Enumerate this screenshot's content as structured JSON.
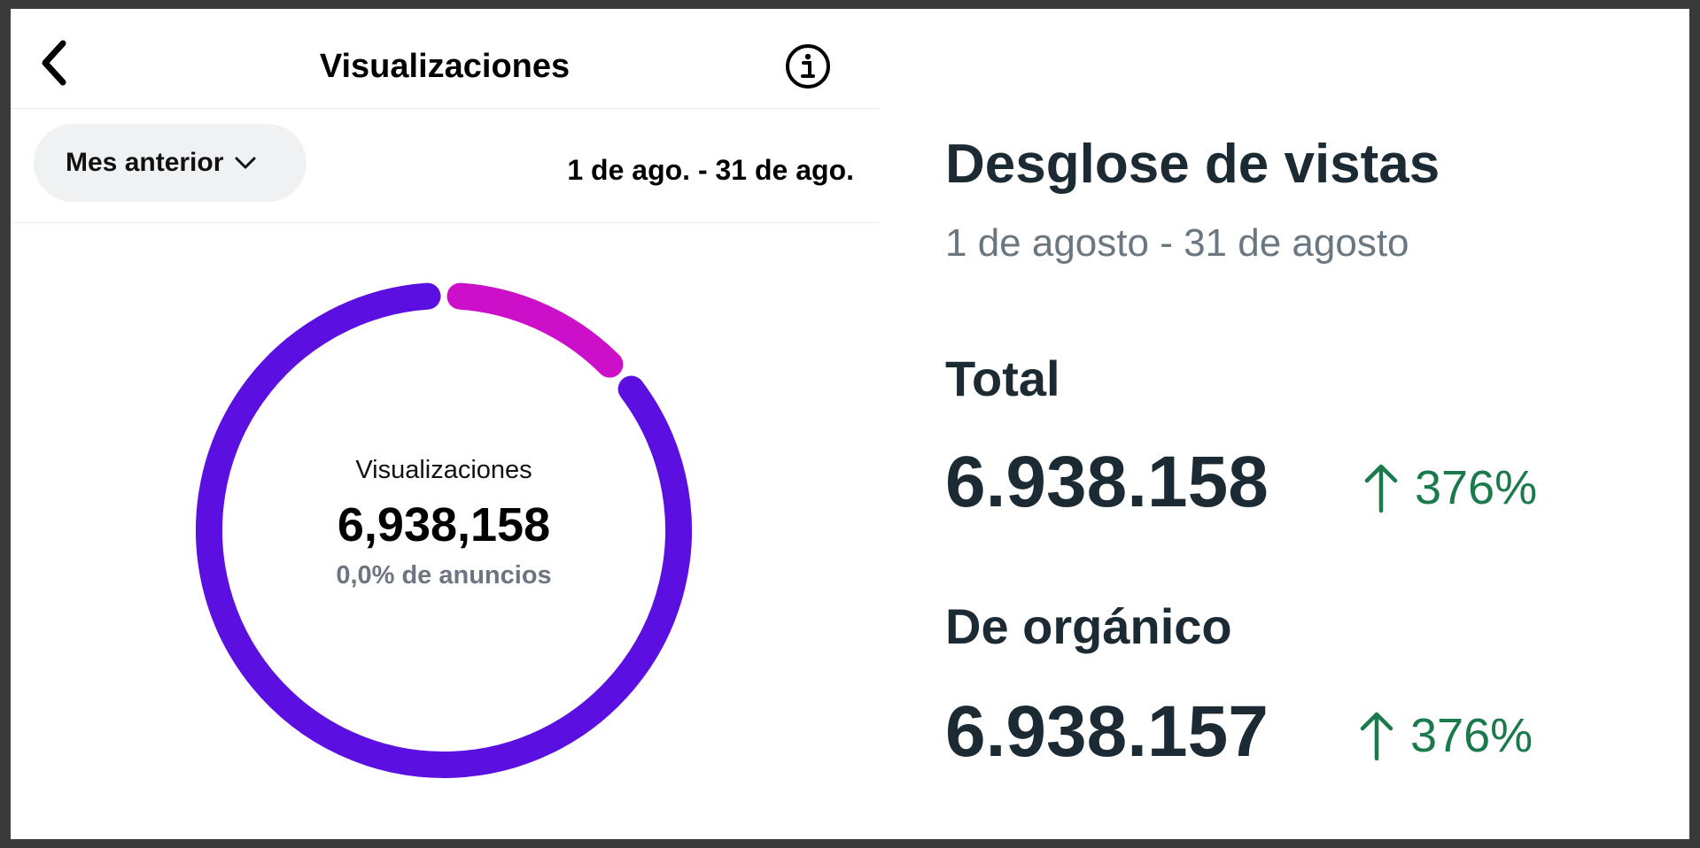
{
  "header": {
    "title": "Visualizaciones",
    "back_icon": "chevron-left-icon",
    "info_icon": "info-icon"
  },
  "filter": {
    "period_label": "Mes anterior",
    "period_icon": "chevron-down-icon",
    "date_range": "1 de ago. - 31 de ago."
  },
  "donut": {
    "label": "Visualizaciones",
    "total": "6,938,158",
    "ads_share": "0,0% de anuncios",
    "segments": [
      {
        "name": "main",
        "fraction": 0.875,
        "color": "#5b0fe0"
      },
      {
        "name": "secondary",
        "fraction": 0.125,
        "color": "#cc0fc9"
      }
    ]
  },
  "breakdown": {
    "title": "Desglose de vistas",
    "date_range": "1 de agosto - 31 de agosto",
    "total": {
      "label": "Total",
      "value": "6.938.158",
      "change": "376%"
    },
    "organic": {
      "label": "De orgánico",
      "value": "6.938.157",
      "change": "376%"
    },
    "up_icon": "arrow-up-icon",
    "positive_color": "#1a7a4c"
  }
}
